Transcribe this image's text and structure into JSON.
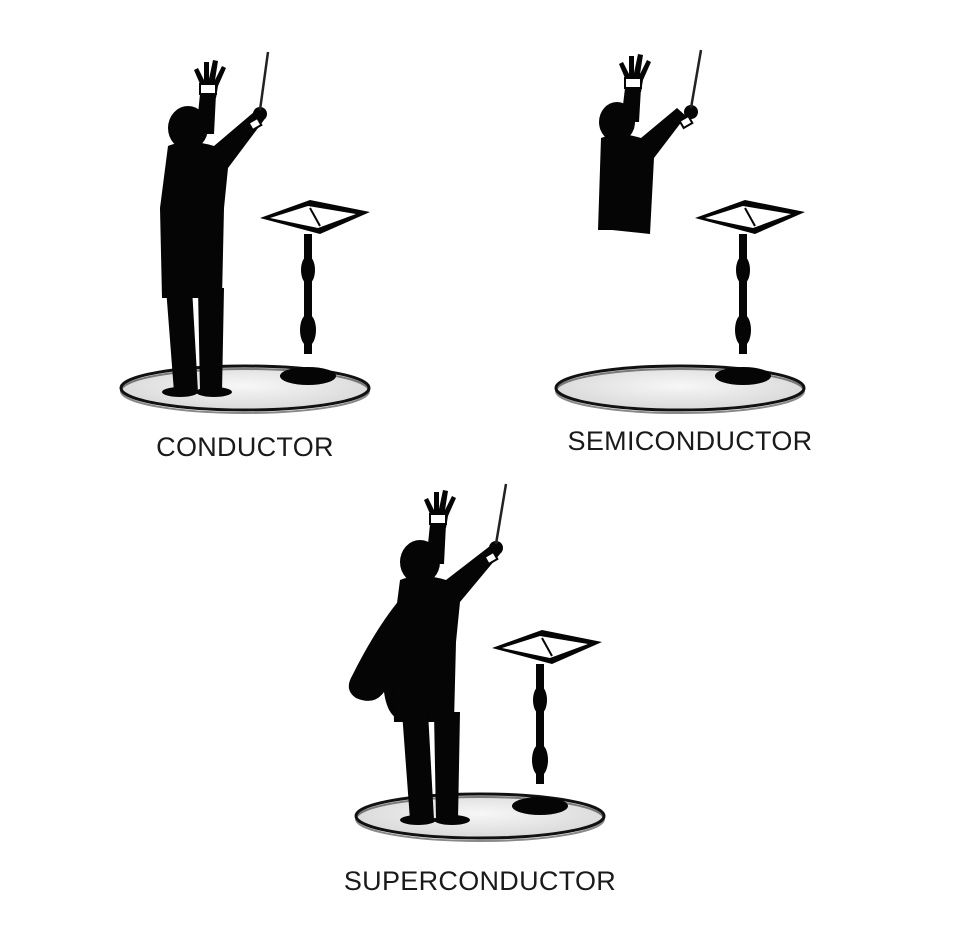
{
  "panels": {
    "conductor": {
      "caption": "CONDUCTOR"
    },
    "semiconductor": {
      "caption": "SEMICONDUCTOR"
    },
    "superconductor": {
      "caption": "SUPERCONDUCTOR"
    }
  },
  "colors": {
    "background": "#ffffff",
    "silhouette": "#050505",
    "platform_fill": "#ececec",
    "platform_rim": "#111111",
    "caption_text": "#1a1a1a"
  }
}
